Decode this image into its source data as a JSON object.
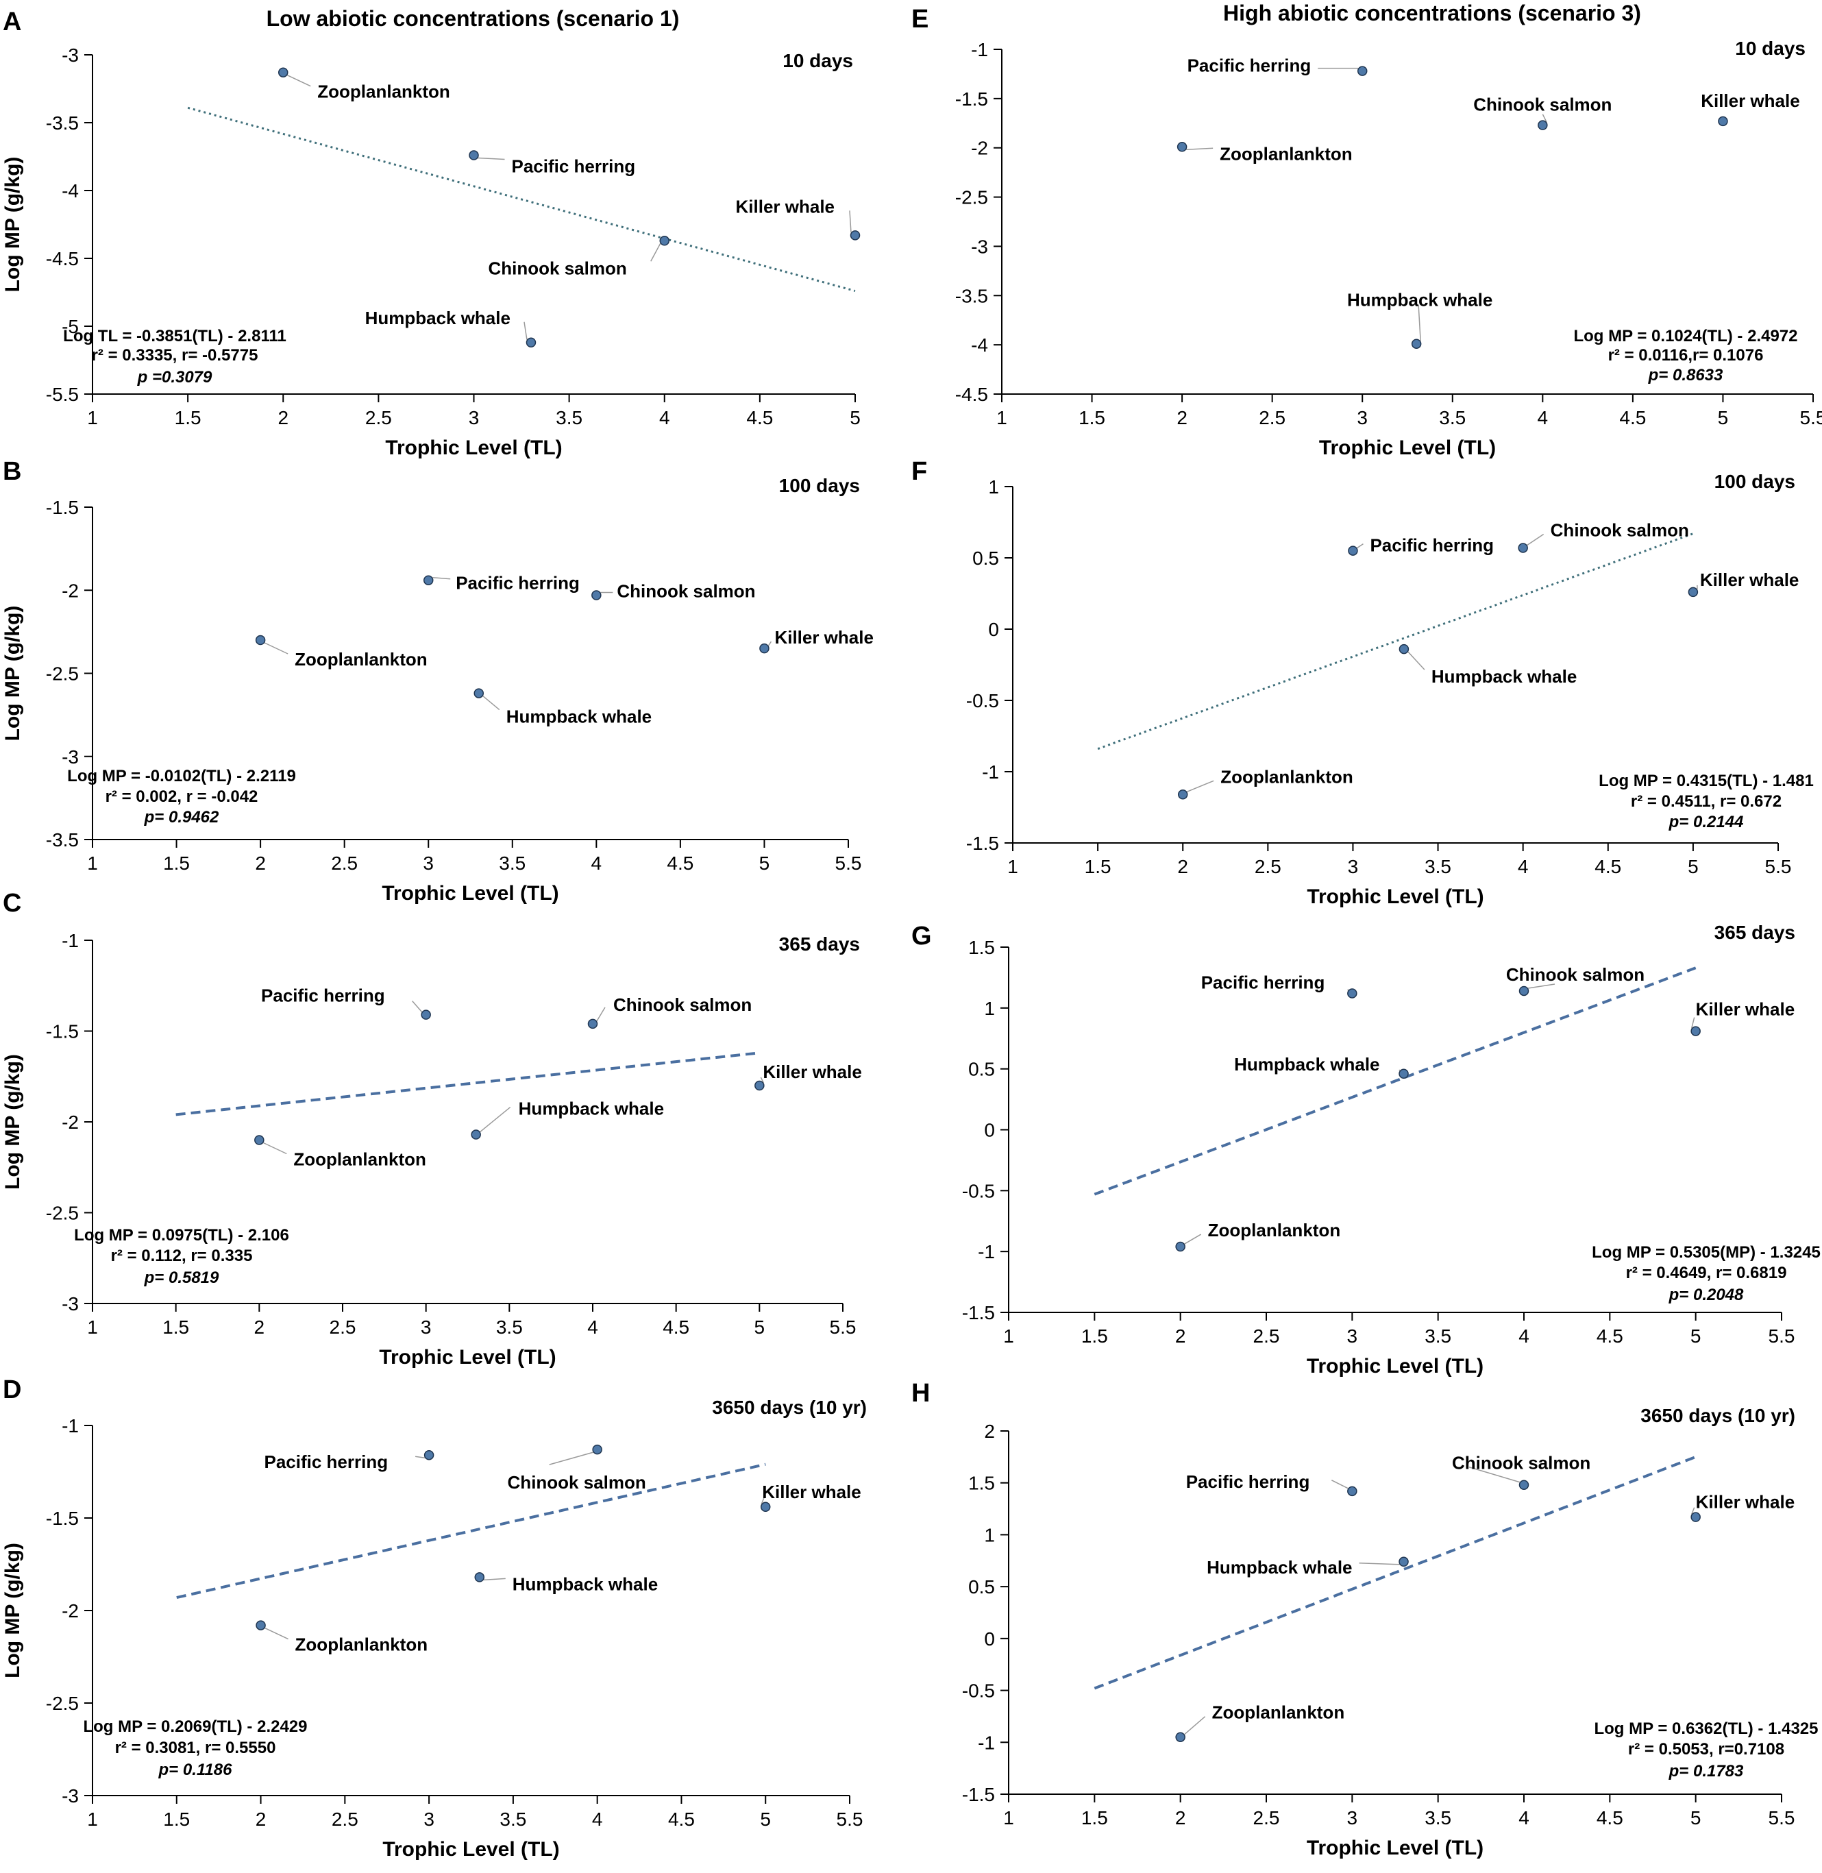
{
  "column_titles": {
    "left": "Low abiotic concentrations (scenario 1)",
    "right": "High abiotic concentrations (scenario 3)"
  },
  "colors": {
    "point_fill": "#4f79a8",
    "point_stroke": "#1f3550",
    "trend": "#4a6fa0",
    "trend_dotted": "#3f6f7a",
    "axis": "#000000",
    "leader": "#9a9a9a"
  },
  "chart_data": [
    {
      "id": "A",
      "type": "scatter",
      "panel_letter": "A",
      "duration": "10 days",
      "xlabel": "Trophic Level (TL)",
      "ylabel": "Log  MP (g/kg)",
      "xlim": [
        1,
        5
      ],
      "xticks": [
        1,
        1.5,
        2,
        2.5,
        3,
        3.5,
        4,
        4.5,
        5
      ],
      "xtick_labels": [
        "1",
        "1.5",
        "2",
        "2.5",
        "3",
        "3.5",
        "4",
        "4.5",
        "5"
      ],
      "ylim": [
        -5.5,
        -3
      ],
      "yticks": [
        -5.5,
        -5,
        -4.5,
        -4,
        -3.5,
        -3
      ],
      "ytick_labels": [
        "-5.5",
        "-5",
        "-4.5",
        "-4",
        "-3.5",
        "-3"
      ],
      "points": [
        {
          "label": "Zooplanlankton",
          "x": 2.0,
          "y": -3.13
        },
        {
          "label": "Pacific herring",
          "x": 3.0,
          "y": -3.74
        },
        {
          "label": "Chinook salmon",
          "x": 4.0,
          "y": -4.37
        },
        {
          "label": "Killer whale",
          "x": 5.0,
          "y": -4.33
        },
        {
          "label": "Humpback whale",
          "x": 3.3,
          "y": -5.12
        }
      ],
      "trend": {
        "style": "dotted",
        "x": [
          1.5,
          5.0
        ],
        "y": [
          -3.39,
          -4.74
        ]
      },
      "equation": [
        "Log TL = -0.3851(TL) - 2.8111",
        "r² = 0.3335, r= -0.5775",
        "p =0.3079"
      ]
    },
    {
      "id": "B",
      "type": "scatter",
      "panel_letter": "B",
      "duration": "100 days",
      "xlabel": "Trophic Level (TL)",
      "ylabel": "Log  MP (g/kg)",
      "xlim": [
        1,
        5.5
      ],
      "xticks": [
        1,
        1.5,
        2,
        2.5,
        3,
        3.5,
        4,
        4.5,
        5,
        5.5
      ],
      "xtick_labels": [
        "1",
        "1.5",
        "2",
        "2.5",
        "3",
        "3.5",
        "4",
        "4.5",
        "5",
        "5.5"
      ],
      "ylim": [
        -3.5,
        -1.5
      ],
      "yticks": [
        -3.5,
        -3,
        -2.5,
        -2,
        -1.5
      ],
      "ytick_labels": [
        "-3.5",
        "-3",
        "-2.5",
        "-2",
        "-1.5"
      ],
      "points": [
        {
          "label": "Pacific herring",
          "x": 3.0,
          "y": -1.94
        },
        {
          "label": "Chinook salmon",
          "x": 4.0,
          "y": -2.03
        },
        {
          "label": "Zooplanlankton",
          "x": 2.0,
          "y": -2.3
        },
        {
          "label": "Killer whale",
          "x": 5.0,
          "y": -2.35
        },
        {
          "label": "Humpback whale",
          "x": 3.3,
          "y": -2.62
        }
      ],
      "trend": null,
      "equation": [
        "Log MP = -0.0102(TL) - 2.2119",
        "r² = 0.002, r = -0.042",
        "p= 0.9462"
      ]
    },
    {
      "id": "C",
      "type": "scatter",
      "panel_letter": "C",
      "duration": "365 days",
      "xlabel": "Trophic Level (TL)",
      "ylabel": "Log  MP (g/kg)",
      "xlim": [
        1,
        5.5
      ],
      "xticks": [
        1,
        1.5,
        2,
        2.5,
        3,
        3.5,
        4,
        4.5,
        5,
        5.5
      ],
      "xtick_labels": [
        "1",
        "1.5",
        "2",
        "2.5",
        "3",
        "3.5",
        "4",
        "4.5",
        "5",
        "5.5"
      ],
      "ylim": [
        -3,
        -1
      ],
      "yticks": [
        -3,
        -2.5,
        -2,
        -1.5,
        -1
      ],
      "ytick_labels": [
        "-3",
        "-2.5",
        "-2",
        "-1.5",
        "-1"
      ],
      "points": [
        {
          "label": "Pacific herring",
          "x": 3.0,
          "y": -1.41
        },
        {
          "label": "Chinook salmon",
          "x": 4.0,
          "y": -1.46
        },
        {
          "label": "Killer whale",
          "x": 5.0,
          "y": -1.8
        },
        {
          "label": "Humpback whale",
          "x": 3.3,
          "y": -2.07
        },
        {
          "label": "Zooplanlankton",
          "x": 2.0,
          "y": -2.1
        }
      ],
      "trend": {
        "style": "dashed",
        "x": [
          1.5,
          5.0
        ],
        "y": [
          -1.96,
          -1.62
        ]
      },
      "equation": [
        "Log MP = 0.0975(TL) - 2.106",
        "r² = 0.112, r= 0.335",
        "p= 0.5819"
      ]
    },
    {
      "id": "D",
      "type": "scatter",
      "panel_letter": "D",
      "duration": "3650 days  (10 yr)",
      "xlabel": "Trophic Level (TL)",
      "ylabel": "Log  MP (g/kg)",
      "xlim": [
        1,
        5.5
      ],
      "xticks": [
        1,
        1.5,
        2,
        2.5,
        3,
        3.5,
        4,
        4.5,
        5,
        5.5
      ],
      "xtick_labels": [
        "1",
        "1.5",
        "2",
        "2.5",
        "3",
        "3.5",
        "4",
        "4.5",
        "5",
        "5.5"
      ],
      "ylim": [
        -3,
        -1
      ],
      "yticks": [
        -3,
        -2.5,
        -2,
        -1.5,
        -1
      ],
      "ytick_labels": [
        "-3",
        "-2.5",
        "-2",
        "-1.5",
        "-1"
      ],
      "points": [
        {
          "label": "Pacific herring",
          "x": 3.0,
          "y": -1.16
        },
        {
          "label": "Chinook salmon",
          "x": 4.0,
          "y": -1.13
        },
        {
          "label": "Killer whale",
          "x": 5.0,
          "y": -1.44
        },
        {
          "label": "Humpback whale",
          "x": 3.3,
          "y": -1.82
        },
        {
          "label": "Zooplanlankton",
          "x": 2.0,
          "y": -2.08
        }
      ],
      "trend": {
        "style": "dashed",
        "x": [
          1.5,
          5.0
        ],
        "y": [
          -1.93,
          -1.21
        ]
      },
      "equation": [
        "Log MP = 0.2069(TL) - 2.2429",
        "r² = 0.3081, r= 0.5550",
        "p= 0.1186"
      ]
    },
    {
      "id": "E",
      "type": "scatter",
      "panel_letter": "E",
      "duration": "10 days",
      "xlabel": "Trophic Level (TL)",
      "ylabel": "",
      "xlim": [
        1,
        5.5
      ],
      "xticks": [
        1,
        1.5,
        2,
        2.5,
        3,
        3.5,
        4,
        4.5,
        5,
        5.5
      ],
      "xtick_labels": [
        "1",
        "1.5",
        "2",
        "2.5",
        "3",
        "3.5",
        "4",
        "4.5",
        "5",
        "5.5"
      ],
      "ylim": [
        -4.5,
        -1
      ],
      "yticks": [
        -4.5,
        -4,
        -3.5,
        -3,
        -2.5,
        -2,
        -1.5,
        -1
      ],
      "ytick_labels": [
        "-4.5",
        "-4",
        "-3.5",
        "-3",
        "-2.5",
        "-2",
        "-1.5",
        "-1"
      ],
      "points": [
        {
          "label": "Pacific herring",
          "x": 3.0,
          "y": -1.22
        },
        {
          "label": "Chinook salmon",
          "x": 4.0,
          "y": -1.77
        },
        {
          "label": "Killer whale",
          "x": 5.0,
          "y": -1.73
        },
        {
          "label": "Zooplanlankton",
          "x": 2.0,
          "y": -1.99
        },
        {
          "label": "Humpback whale",
          "x": 3.3,
          "y": -3.99
        }
      ],
      "trend": null,
      "equation": [
        "Log MP = 0.1024(TL) - 2.4972",
        "r² = 0.0116,r= 0.1076",
        "p= 0.8633"
      ]
    },
    {
      "id": "F",
      "type": "scatter",
      "panel_letter": "F",
      "duration": "100 days",
      "xlabel": "Trophic Level (TL)",
      "ylabel": "",
      "xlim": [
        1,
        5.5
      ],
      "xticks": [
        1,
        1.5,
        2,
        2.5,
        3,
        3.5,
        4,
        4.5,
        5,
        5.5
      ],
      "xtick_labels": [
        "1",
        "1.5",
        "2",
        "2.5",
        "3",
        "3.5",
        "4",
        "4.5",
        "5",
        "5.5"
      ],
      "ylim": [
        -1.5,
        1
      ],
      "yticks": [
        -1.5,
        -1,
        -0.5,
        0,
        0.5,
        1
      ],
      "ytick_labels": [
        "-1.5",
        "-1",
        "-0.5",
        "0",
        "0.5",
        "1"
      ],
      "points": [
        {
          "label": "Pacific herring",
          "x": 3.0,
          "y": 0.55
        },
        {
          "label": "Chinook salmon",
          "x": 4.0,
          "y": 0.57
        },
        {
          "label": "Killer whale",
          "x": 5.0,
          "y": 0.26
        },
        {
          "label": "Humpback whale",
          "x": 3.3,
          "y": -0.14
        },
        {
          "label": "Zooplanlankton",
          "x": 2.0,
          "y": -1.16
        }
      ],
      "trend": {
        "style": "dotted",
        "x": [
          1.5,
          5.0
        ],
        "y": [
          -0.84,
          0.67
        ]
      },
      "equation": [
        "Log MP = 0.4315(TL) - 1.481",
        "r² = 0.4511, r= 0.672",
        "p= 0.2144"
      ]
    },
    {
      "id": "G",
      "type": "scatter",
      "panel_letter": "G",
      "duration": "365 days",
      "xlabel": "Trophic Level (TL)",
      "ylabel": "",
      "xlim": [
        1,
        5.5
      ],
      "xticks": [
        1,
        1.5,
        2,
        2.5,
        3,
        3.5,
        4,
        4.5,
        5,
        5.5
      ],
      "xtick_labels": [
        "1",
        "1.5",
        "2",
        "2.5",
        "3",
        "3.5",
        "4",
        "4.5",
        "5",
        "5.5"
      ],
      "ylim": [
        -1.5,
        1.5
      ],
      "yticks": [
        -1.5,
        -1,
        -0.5,
        0,
        0.5,
        1,
        1.5
      ],
      "ytick_labels": [
        "-1.5",
        "-1",
        "-0.5",
        "0",
        "0.5",
        "1",
        "1.5"
      ],
      "points": [
        {
          "label": "Pacific herring",
          "x": 3.0,
          "y": 1.12
        },
        {
          "label": "Chinook salmon",
          "x": 4.0,
          "y": 1.14
        },
        {
          "label": "Killer whale",
          "x": 5.0,
          "y": 0.81
        },
        {
          "label": "Humpback whale",
          "x": 3.3,
          "y": 0.46
        },
        {
          "label": "Zooplanlankton",
          "x": 2.0,
          "y": -0.96
        }
      ],
      "trend": {
        "style": "dashed",
        "x": [
          1.5,
          5.0
        ],
        "y": [
          -0.53,
          1.33
        ]
      },
      "equation": [
        "Log MP = 0.5305(MP) - 1.3245",
        "r² = 0.4649, r= 0.6819",
        "p= 0.2048"
      ]
    },
    {
      "id": "H",
      "type": "scatter",
      "panel_letter": "H",
      "duration": "3650 days  (10 yr)",
      "xlabel": "Trophic Level (TL)",
      "ylabel": "",
      "xlim": [
        1,
        5.5
      ],
      "xticks": [
        1,
        1.5,
        2,
        2.5,
        3,
        3.5,
        4,
        4.5,
        5,
        5.5
      ],
      "xtick_labels": [
        "1",
        "1.5",
        "2",
        "2.5",
        "3",
        "3.5",
        "4",
        "4.5",
        "5",
        "5.5"
      ],
      "ylim": [
        -1.5,
        2
      ],
      "yticks": [
        -1.5,
        -1,
        -0.5,
        0,
        0.5,
        1,
        1.5,
        2
      ],
      "ytick_labels": [
        "-1.5",
        "-1",
        "-0.5",
        "0",
        "0.5",
        "1",
        "1.5",
        "2"
      ],
      "points": [
        {
          "label": "Pacific herring",
          "x": 3.0,
          "y": 1.42
        },
        {
          "label": "Chinook salmon",
          "x": 4.0,
          "y": 1.48
        },
        {
          "label": "Killer whale",
          "x": 5.0,
          "y": 1.17
        },
        {
          "label": "Humpback whale",
          "x": 3.3,
          "y": 0.74
        },
        {
          "label": "Zooplanlankton",
          "x": 2.0,
          "y": -0.95
        }
      ],
      "trend": {
        "style": "dashed",
        "x": [
          1.5,
          5.0
        ],
        "y": [
          -0.48,
          1.75
        ]
      },
      "equation": [
        "Log MP = 0.6362(TL) - 1.4325",
        "r² = 0.5053, r=0.7108",
        "p= 0.1783"
      ]
    }
  ]
}
